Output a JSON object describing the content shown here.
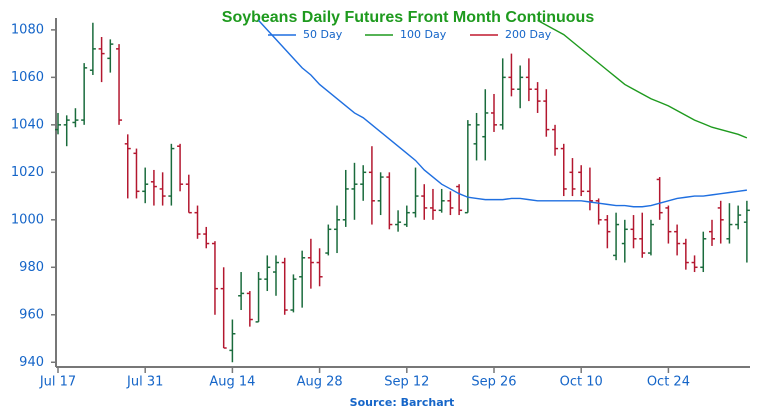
{
  "chart_data": {
    "type": "ohlc",
    "title": "Soybeans Daily Futures Front Month Continuous",
    "source": "Source: Barchart",
    "categories": [
      "Jul 17",
      null,
      null,
      null,
      null,
      null,
      null,
      null,
      null,
      null,
      "Jul 31",
      null,
      null,
      null,
      null,
      null,
      null,
      null,
      null,
      null,
      "Aug 14",
      null,
      null,
      null,
      null,
      null,
      null,
      null,
      null,
      null,
      "Aug 28",
      null,
      null,
      null,
      null,
      null,
      null,
      null,
      null,
      null,
      "Sep 12",
      null,
      null,
      null,
      null,
      null,
      null,
      null,
      null,
      null,
      "Sep 26",
      null,
      null,
      null,
      null,
      null,
      null,
      null,
      null,
      null,
      "Oct 10",
      null,
      null,
      null,
      null,
      null,
      null,
      null,
      null,
      null,
      "Oct 24",
      null,
      null,
      null,
      null,
      null,
      null,
      null,
      null,
      null
    ],
    "open": [
      1038,
      1040,
      1041,
      1042,
      1063,
      1072,
      1068,
      1072,
      1032,
      1028,
      1012,
      1016,
      1013,
      1010,
      1031,
      1015,
      1003,
      994,
      990,
      971,
      945,
      968,
      969,
      957,
      975,
      978,
      982,
      962,
      976,
      984,
      982,
      986,
      996,
      1000,
      1013,
      1015,
      1020,
      1008,
      1018,
      998,
      998,
      1003,
      1010,
      1005,
      1004,
      1008,
      1014,
      1003,
      1032,
      1035,
      1045,
      1040,
      1060,
      1055,
      1060,
      1055,
      1050,
      1038,
      1030,
      1020,
      1020,
      1012,
      1008,
      1000,
      985,
      990,
      996,
      992,
      986,
      1017,
      1005,
      995,
      990,
      982,
      980,
      995,
      1005,
      992,
      998,
      999
    ],
    "high": [
      1045,
      1044,
      1047,
      1066,
      1083,
      1077,
      1076,
      1074,
      1036,
      1030,
      1022,
      1021,
      1020,
      1032,
      1032,
      1019,
      1006,
      997,
      991,
      980,
      958,
      978,
      970,
      978,
      985,
      985,
      984,
      977,
      987,
      992,
      988,
      998,
      1006,
      1021,
      1024,
      1023,
      1031,
      1020,
      1020,
      1004,
      1006,
      1022,
      1015,
      1013,
      1013,
      1012,
      1015,
      1042,
      1045,
      1055,
      1053,
      1068,
      1070,
      1065,
      1068,
      1058,
      1055,
      1040,
      1032,
      1026,
      1023,
      1022,
      1009,
      1002,
      1003,
      1000,
      1002,
      1003,
      1000,
      1018,
      1006,
      998,
      992,
      985,
      995,
      1000,
      1008,
      1007,
      1006,
      1008
    ],
    "low": [
      1036,
      1031,
      1039,
      1040,
      1061,
      1058,
      1062,
      1040,
      1009,
      1009,
      1007,
      1006,
      1006,
      1006,
      1012,
      1003,
      992,
      988,
      960,
      946,
      940,
      962,
      955,
      957,
      970,
      968,
      960,
      961,
      963,
      971,
      972,
      985,
      986,
      997,
      1000,
      1008,
      998,
      1002,
      996,
      995,
      997,
      1001,
      1000,
      1000,
      1003,
      1002,
      1002,
      1003,
      1025,
      1025,
      1037,
      1038,
      1052,
      1047,
      1050,
      1045,
      1035,
      1027,
      1010,
      1010,
      1010,
      1004,
      998,
      988,
      983,
      982,
      988,
      984,
      985,
      1000,
      990,
      985,
      979,
      978,
      978,
      989,
      990,
      990,
      996,
      982
    ],
    "close": [
      1040,
      1042,
      1042,
      1064,
      1072,
      1070,
      1074,
      1042,
      1030,
      1012,
      1015,
      1014,
      1010,
      1030,
      1015,
      1003,
      994,
      990,
      971,
      946,
      952,
      969,
      958,
      975,
      980,
      982,
      962,
      975,
      984,
      982,
      976,
      996,
      1000,
      1013,
      1015,
      1020,
      1008,
      1018,
      998,
      999,
      1003,
      1010,
      1005,
      1004,
      1008,
      1005,
      1004,
      1040,
      1040,
      1045,
      1040,
      1060,
      1055,
      1060,
      1055,
      1050,
      1038,
      1030,
      1013,
      1013,
      1012,
      1008,
      1000,
      995,
      998,
      996,
      992,
      986,
      998,
      1003,
      995,
      990,
      982,
      980,
      992,
      992,
      1000,
      998,
      1002,
      1004
    ],
    "up_color": "#1a6b3c",
    "down_color": "#b3172f",
    "lines": [
      {
        "name": "50 Day",
        "color": "#1f6fe0",
        "values": [
          null,
          null,
          null,
          null,
          null,
          null,
          null,
          null,
          null,
          null,
          null,
          null,
          null,
          null,
          null,
          null,
          null,
          null,
          null,
          null,
          null,
          null,
          null,
          1084,
          1080,
          1076,
          1072,
          1068,
          1064,
          1061,
          1057,
          1054,
          1051,
          1048,
          1045,
          1043,
          1040,
          1037,
          1034,
          1031,
          1028,
          1025,
          1021,
          1018,
          1015,
          1013,
          1011,
          1009.5,
          1009,
          1008.5,
          1008.5,
          1008.5,
          1009,
          1009,
          1008.5,
          1008,
          1008,
          1008,
          1008,
          1008,
          1008,
          1007.5,
          1007,
          1006.5,
          1006,
          1006,
          1005.5,
          1005.5,
          1006,
          1007,
          1008,
          1009,
          1009.5,
          1010,
          1010,
          1010.5,
          1011,
          1011.5,
          1012,
          1012.5
        ]
      },
      {
        "name": "100 Day",
        "color": "#1e9a1e",
        "values": [
          null,
          null,
          null,
          null,
          null,
          null,
          null,
          null,
          null,
          null,
          null,
          null,
          null,
          null,
          null,
          null,
          null,
          null,
          null,
          null,
          null,
          null,
          null,
          null,
          null,
          null,
          null,
          null,
          null,
          null,
          null,
          null,
          null,
          null,
          null,
          null,
          null,
          null,
          null,
          null,
          null,
          null,
          null,
          null,
          null,
          null,
          null,
          null,
          null,
          null,
          null,
          null,
          null,
          null,
          null,
          1084,
          1082,
          1080,
          1078,
          1075,
          1072,
          1069,
          1066,
          1063,
          1060,
          1057,
          1055,
          1053,
          1051,
          1049.5,
          1048,
          1046,
          1044,
          1042,
          1040.5,
          1039,
          1038,
          1037,
          1036,
          1034.5
        ]
      },
      {
        "name": "200 Day",
        "color": "#c0182e",
        "values": [
          null,
          null,
          null,
          null,
          null,
          null,
          null,
          null,
          null,
          null,
          null,
          null,
          null,
          null,
          null,
          null,
          null,
          null,
          null,
          null,
          null,
          null,
          null,
          null,
          null,
          null,
          null,
          null,
          null,
          null,
          null,
          null,
          null,
          null,
          null,
          null,
          null,
          null,
          null,
          null,
          null,
          null,
          null,
          null,
          null,
          null,
          null,
          null,
          null,
          null,
          null,
          null,
          null,
          null,
          null,
          null,
          null,
          null,
          null,
          null,
          null,
          null,
          null,
          null,
          null,
          null,
          null,
          null,
          null,
          null,
          null,
          null,
          null,
          null,
          null,
          null,
          null,
          null,
          null,
          null
        ]
      }
    ],
    "ylim": [
      938,
      1085
    ],
    "yticks": [
      940,
      960,
      980,
      1000,
      1020,
      1040,
      1060,
      1080
    ]
  }
}
